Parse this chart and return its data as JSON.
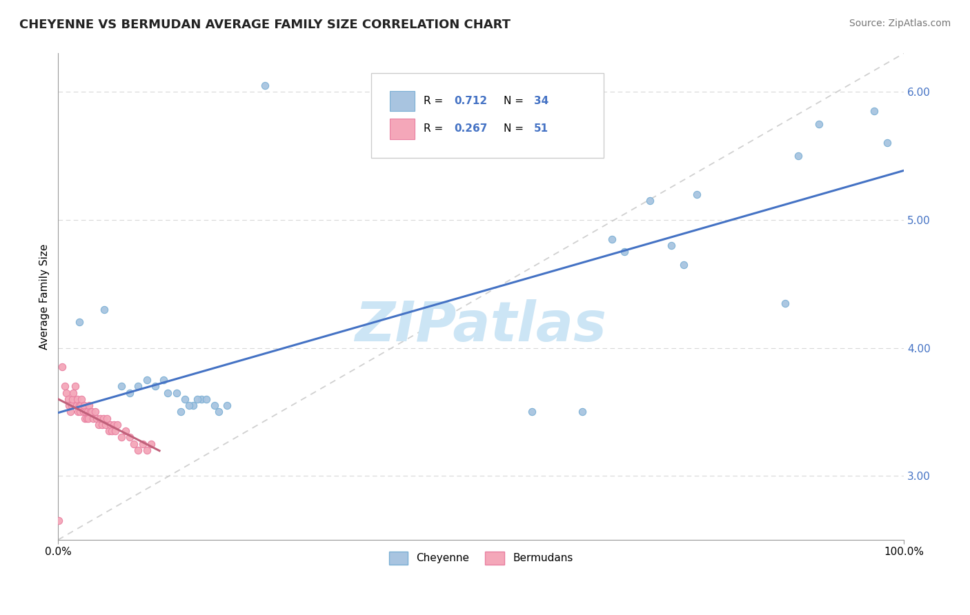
{
  "title": "CHEYENNE VS BERMUDAN AVERAGE FAMILY SIZE CORRELATION CHART",
  "source_text": "Source: ZipAtlas.com",
  "ylabel": "Average Family Size",
  "xlim": [
    0,
    1.0
  ],
  "ylim": [
    2.5,
    6.3
  ],
  "xtick_labels": [
    "0.0%",
    "100.0%"
  ],
  "ytick_values": [
    3.0,
    4.0,
    5.0,
    6.0
  ],
  "cheyenne_color": "#a8c4e0",
  "bermudans_color": "#f4a7b9",
  "cheyenne_edge": "#7aafd4",
  "bermudans_edge": "#e87fa0",
  "regression_cheyenne_color": "#4472c4",
  "regression_bermudans_color": "#c0607a",
  "diagonal_color": "#c8c8c8",
  "R_cheyenne": 0.712,
  "N_cheyenne": 34,
  "R_bermudans": 0.267,
  "N_bermudans": 51,
  "watermark_text": "ZIPatlas",
  "watermark_color": "#cce5f5",
  "cheyenne_x": [
    0.245,
    0.025,
    0.055,
    0.075,
    0.085,
    0.095,
    0.105,
    0.115,
    0.125,
    0.13,
    0.14,
    0.15,
    0.16,
    0.17,
    0.175,
    0.185,
    0.19,
    0.2,
    0.165,
    0.155,
    0.145,
    0.56,
    0.62,
    0.655,
    0.67,
    0.7,
    0.725,
    0.74,
    0.755,
    0.86,
    0.875,
    0.9,
    0.965,
    0.98
  ],
  "cheyenne_y": [
    6.05,
    4.2,
    4.3,
    3.7,
    3.65,
    3.7,
    3.75,
    3.7,
    3.75,
    3.65,
    3.65,
    3.6,
    3.55,
    3.6,
    3.6,
    3.55,
    3.5,
    3.55,
    3.6,
    3.55,
    3.5,
    3.5,
    3.5,
    4.85,
    4.75,
    5.15,
    4.8,
    4.65,
    5.2,
    4.35,
    5.5,
    5.75,
    5.85,
    5.6
  ],
  "bermudans_x": [
    0.005,
    0.008,
    0.01,
    0.012,
    0.013,
    0.015,
    0.016,
    0.017,
    0.018,
    0.02,
    0.022,
    0.023,
    0.024,
    0.025,
    0.026,
    0.027,
    0.028,
    0.03,
    0.031,
    0.032,
    0.033,
    0.034,
    0.035,
    0.036,
    0.037,
    0.038,
    0.04,
    0.042,
    0.044,
    0.046,
    0.048,
    0.05,
    0.052,
    0.054,
    0.056,
    0.058,
    0.06,
    0.062,
    0.064,
    0.066,
    0.068,
    0.07,
    0.075,
    0.08,
    0.085,
    0.09,
    0.095,
    0.1,
    0.105,
    0.11,
    0.001
  ],
  "bermudans_y": [
    3.85,
    3.7,
    3.65,
    3.6,
    3.55,
    3.5,
    3.55,
    3.6,
    3.65,
    3.7,
    3.55,
    3.6,
    3.5,
    3.55,
    3.5,
    3.55,
    3.6,
    3.5,
    3.55,
    3.45,
    3.5,
    3.45,
    3.5,
    3.45,
    3.55,
    3.5,
    3.5,
    3.45,
    3.5,
    3.45,
    3.4,
    3.45,
    3.4,
    3.45,
    3.4,
    3.45,
    3.35,
    3.4,
    3.35,
    3.4,
    3.35,
    3.4,
    3.3,
    3.35,
    3.3,
    3.25,
    3.2,
    3.25,
    3.2,
    3.25,
    2.65
  ]
}
